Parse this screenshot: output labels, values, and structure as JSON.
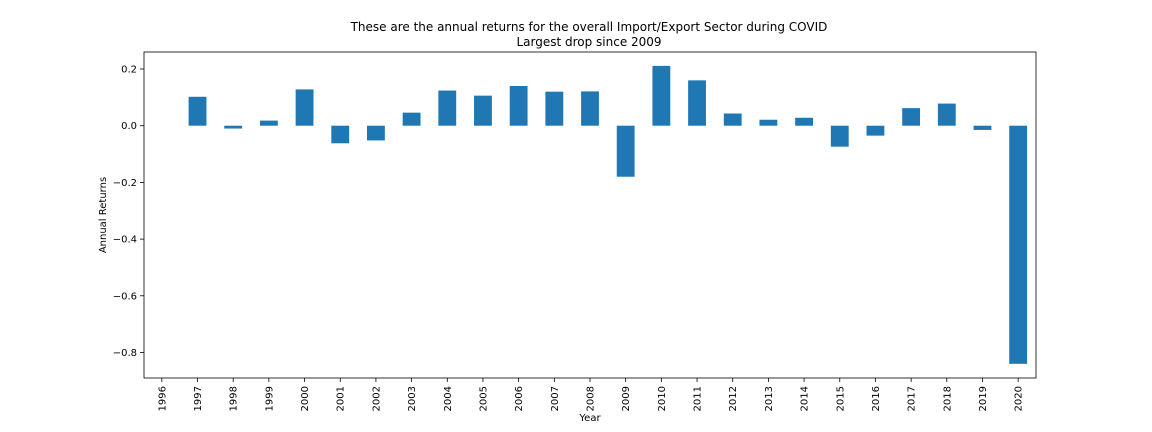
{
  "chart_data": {
    "type": "bar",
    "title": "These are the annual returns for the overall Import/Export Sector during COVID",
    "subtitle": "Largest drop since 2009",
    "xlabel": "Year",
    "ylabel": "Annual Returns",
    "categories": [
      "1996",
      "1997",
      "1998",
      "1999",
      "2000",
      "2001",
      "2002",
      "2003",
      "2004",
      "2005",
      "2006",
      "2007",
      "2008",
      "2009",
      "2010",
      "2011",
      "2012",
      "2013",
      "2014",
      "2015",
      "2016",
      "2017",
      "2018",
      "2019",
      "2020"
    ],
    "values": [
      null,
      0.102,
      -0.01,
      0.018,
      0.128,
      -0.062,
      -0.052,
      0.046,
      0.124,
      0.106,
      0.14,
      0.12,
      0.121,
      -0.18,
      0.211,
      0.16,
      0.043,
      0.021,
      0.028,
      -0.074,
      -0.035,
      0.062,
      0.078,
      -0.015,
      -0.84
    ],
    "ylim": [
      -0.89,
      0.26
    ],
    "yticks": [
      0.2,
      0.0,
      -0.2,
      -0.4,
      -0.6,
      -0.8
    ],
    "ytick_labels": [
      "0.2",
      "0.0",
      "−0.2",
      "−0.4",
      "−0.6",
      "−0.8"
    ],
    "bar_color": "#1f77b4",
    "grid": false,
    "legend": "none"
  }
}
